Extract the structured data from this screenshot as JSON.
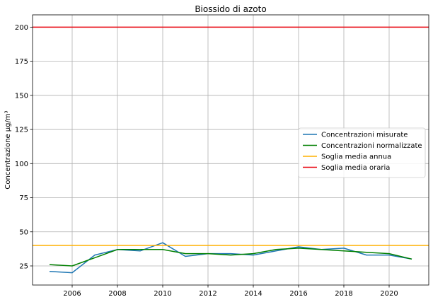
{
  "chart_data": {
    "type": "line",
    "title": "Biossido di azoto",
    "xlabel": "",
    "ylabel": "Concentrazione µg/m³",
    "xlim": [
      2004.25,
      2021.75
    ],
    "ylim": [
      11,
      209
    ],
    "xticks": [
      2006,
      2008,
      2010,
      2012,
      2014,
      2016,
      2018,
      2020
    ],
    "yticks": [
      25,
      50,
      75,
      100,
      125,
      150,
      175,
      200
    ],
    "grid": true,
    "legend_position": "center-right",
    "series": [
      {
        "name": "Concentrazioni misurate",
        "color": "#1f77b4",
        "x": [
          2005,
          2006,
          2007,
          2008,
          2009,
          2010,
          2011,
          2012,
          2013,
          2014,
          2015,
          2016,
          2017,
          2018,
          2019,
          2020,
          2021
        ],
        "y": [
          21,
          20,
          33,
          37,
          36,
          42,
          32,
          34,
          34,
          33,
          36,
          39,
          37,
          38,
          33,
          33,
          30
        ]
      },
      {
        "name": "Concentrazioni normalizzate",
        "color": "#008000",
        "x": [
          2005,
          2006,
          2007,
          2008,
          2009,
          2010,
          2011,
          2012,
          2013,
          2014,
          2015,
          2016,
          2017,
          2018,
          2019,
          2020,
          2021
        ],
        "y": [
          26,
          25,
          31,
          37,
          37,
          37,
          34,
          34,
          33,
          34,
          37,
          38,
          37,
          36,
          35,
          34,
          30
        ]
      },
      {
        "name": "Soglia media annua",
        "color": "#ffb000",
        "hline": 40
      },
      {
        "name": "Soglia media oraria",
        "color": "#e8000b",
        "hline": 200
      }
    ]
  }
}
